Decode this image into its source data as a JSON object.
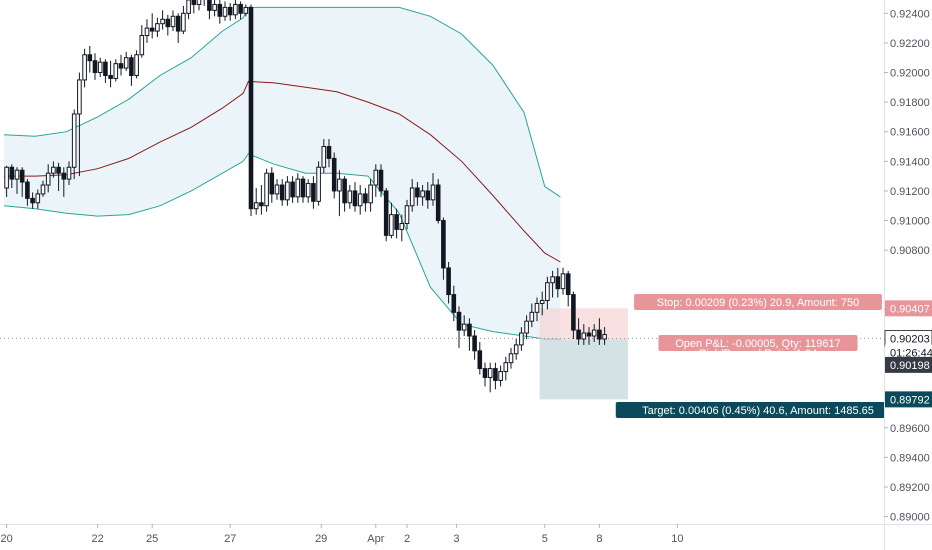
{
  "chart_data": {
    "type": "candlestick",
    "colors": {
      "candle_up": "#ffffff",
      "candle_down": "#131722",
      "wick": "#131722",
      "band_line": "#26a69a",
      "band_fill": "#e3f0f7",
      "mid_line": "#8b1a1a",
      "stop_zone": "#f7d4d4",
      "target_zone": "#c9d9df",
      "stop_label_bg": "#e8959a",
      "target_label_bg": "#0b4a5a",
      "price_tag_bg": "#363a45",
      "dotted_line": "#9598a1"
    },
    "ylim": [
      0.8895,
      0.9249
    ],
    "xlim": [
      0,
      130
    ],
    "y_ticks": [
      "0.92400",
      "0.92200",
      "0.92000",
      "0.91800",
      "0.91600",
      "0.91400",
      "0.91200",
      "0.91000",
      "0.90800",
      "0.90400",
      "0.90200",
      "0.89600",
      "0.89400",
      "0.89200",
      "0.89000"
    ],
    "x_ticks": [
      {
        "label": "20",
        "x": 0.5
      },
      {
        "label": "22",
        "x": 18
      },
      {
        "label": "25",
        "x": 28.5
      },
      {
        "label": "27",
        "x": 43.5
      },
      {
        "label": "29",
        "x": 61
      },
      {
        "label": "Apr",
        "x": 71.5
      },
      {
        "label": "2",
        "x": 77.5
      },
      {
        "label": "3",
        "x": 87
      },
      {
        "label": "5",
        "x": 104
      },
      {
        "label": "8",
        "x": 114.5
      },
      {
        "label": "10",
        "x": 129.5
      }
    ],
    "price_tags": [
      {
        "label": "0.90407",
        "value": 0.90407,
        "style": "stop"
      },
      {
        "label": "0.90203",
        "value": 0.90203,
        "style": "current"
      },
      {
        "label": "01:26:44",
        "value": 0.90107,
        "style": "timer"
      },
      {
        "label": "0.90198",
        "value": 0.90025,
        "style": "entry"
      },
      {
        "label": "0.89792",
        "value": 0.89792,
        "style": "target"
      }
    ],
    "position": {
      "entry": 0.90198,
      "stop": 0.90407,
      "target": 0.89792,
      "x_start": 103,
      "x_end": 120,
      "stop_label": "Stop: 0.00209 (0.23%) 20.9, Amount: 750",
      "open_label": "Open P&L: -0.00005, Qty: 119617",
      "ratio_label": "Risk/Reward Ratio: 1.94",
      "target_label": "Target: 0.00406 (0.45%) 40.6, Amount: 1485.65"
    },
    "bands": {
      "x": [
        0,
        6,
        12,
        18,
        24,
        30,
        36,
        42,
        46,
        47,
        52,
        58,
        64,
        70,
        76,
        82,
        88,
        94,
        100,
        104,
        107
      ],
      "upper": [
        0.9158,
        0.9157,
        0.916,
        0.917,
        0.9182,
        0.9198,
        0.921,
        0.9228,
        0.9237,
        0.9244,
        0.9244,
        0.9244,
        0.9244,
        0.9244,
        0.9244,
        0.9238,
        0.9226,
        0.9205,
        0.9173,
        0.9123,
        0.9116
      ],
      "middle": [
        0.913,
        0.913,
        0.9131,
        0.9135,
        0.9142,
        0.9153,
        0.9163,
        0.9176,
        0.9186,
        0.9194,
        0.9193,
        0.919,
        0.9187,
        0.918,
        0.9172,
        0.9158,
        0.914,
        0.9117,
        0.9093,
        0.9078,
        0.9072
      ],
      "lower": [
        0.911,
        0.9108,
        0.9105,
        0.9103,
        0.9104,
        0.911,
        0.912,
        0.9132,
        0.914,
        0.9145,
        0.9138,
        0.9132,
        0.9132,
        0.913,
        0.9105,
        0.9055,
        0.903,
        0.9025,
        0.9022,
        0.902,
        0.902
      ]
    },
    "candles": [
      [
        0.9122,
        0.9136,
        0.9137,
        0.9116
      ],
      [
        0.9136,
        0.9128,
        0.9138,
        0.9122
      ],
      [
        0.9128,
        0.9134,
        0.9136,
        0.9118
      ],
      [
        0.9134,
        0.9126,
        0.9136,
        0.9116
      ],
      [
        0.9126,
        0.9115,
        0.9128,
        0.911
      ],
      [
        0.9115,
        0.9112,
        0.9119,
        0.9108
      ],
      [
        0.9112,
        0.9118,
        0.9121,
        0.9108
      ],
      [
        0.9118,
        0.9124,
        0.9127,
        0.9116
      ],
      [
        0.9124,
        0.9132,
        0.9138,
        0.9119
      ],
      [
        0.9132,
        0.9136,
        0.914,
        0.9129
      ],
      [
        0.9136,
        0.9132,
        0.9139,
        0.912
      ],
      [
        0.9132,
        0.9128,
        0.9136,
        0.9116
      ],
      [
        0.9128,
        0.9136,
        0.914,
        0.9124
      ],
      [
        0.9136,
        0.9172,
        0.9175,
        0.9128
      ],
      [
        0.9172,
        0.9195,
        0.92,
        0.913
      ],
      [
        0.9195,
        0.9212,
        0.9216,
        0.919
      ],
      [
        0.9212,
        0.9208,
        0.9218,
        0.92
      ],
      [
        0.9208,
        0.92,
        0.9213,
        0.9195
      ],
      [
        0.92,
        0.9207,
        0.921,
        0.9197
      ],
      [
        0.9207,
        0.9198,
        0.9209,
        0.9193
      ],
      [
        0.9198,
        0.9196,
        0.9208,
        0.919
      ],
      [
        0.9196,
        0.9206,
        0.9209,
        0.9194
      ],
      [
        0.9206,
        0.9203,
        0.9212,
        0.9198
      ],
      [
        0.9203,
        0.921,
        0.9214,
        0.9201
      ],
      [
        0.921,
        0.9198,
        0.9212,
        0.9191
      ],
      [
        0.9198,
        0.9212,
        0.9215,
        0.9196
      ],
      [
        0.9212,
        0.9225,
        0.9232,
        0.921
      ],
      [
        0.9225,
        0.923,
        0.9236,
        0.922
      ],
      [
        0.923,
        0.9228,
        0.924,
        0.9223
      ],
      [
        0.9228,
        0.9233,
        0.9237,
        0.9224
      ],
      [
        0.9233,
        0.9236,
        0.9242,
        0.9229
      ],
      [
        0.9236,
        0.9231,
        0.9239,
        0.9225
      ],
      [
        0.9231,
        0.9238,
        0.9242,
        0.9228
      ],
      [
        0.9238,
        0.9228,
        0.924,
        0.922
      ],
      [
        0.9228,
        0.924,
        0.9245,
        0.9226
      ],
      [
        0.924,
        0.9249,
        0.9252,
        0.9236
      ],
      [
        0.9249,
        0.9246,
        0.9252,
        0.924
      ],
      [
        0.9246,
        0.9254,
        0.9256,
        0.9242
      ],
      [
        0.9254,
        0.925,
        0.9256,
        0.9245
      ],
      [
        0.925,
        0.9242,
        0.9254,
        0.9236
      ],
      [
        0.9242,
        0.9246,
        0.925,
        0.9238
      ],
      [
        0.9246,
        0.9238,
        0.9249,
        0.9233
      ],
      [
        0.9238,
        0.9244,
        0.9248,
        0.9235
      ],
      [
        0.9244,
        0.9239,
        0.9247,
        0.9235
      ],
      [
        0.9239,
        0.9246,
        0.9249,
        0.9236
      ],
      [
        0.9246,
        0.924,
        0.9248,
        0.9236
      ],
      [
        0.924,
        0.9244,
        0.9246,
        0.9238
      ],
      [
        0.9244,
        0.9108,
        0.9246,
        0.9103
      ],
      [
        0.9108,
        0.9112,
        0.9122,
        0.9104
      ],
      [
        0.9112,
        0.911,
        0.9124,
        0.9104
      ],
      [
        0.911,
        0.9132,
        0.9135,
        0.9106
      ],
      [
        0.9132,
        0.9118,
        0.9136,
        0.9112
      ],
      [
        0.9118,
        0.9124,
        0.9128,
        0.9114
      ],
      [
        0.9124,
        0.9114,
        0.9128,
        0.911
      ],
      [
        0.9114,
        0.9126,
        0.913,
        0.911
      ],
      [
        0.9126,
        0.9116,
        0.913,
        0.9112
      ],
      [
        0.9116,
        0.9128,
        0.9132,
        0.9112
      ],
      [
        0.9128,
        0.9116,
        0.913,
        0.9112
      ],
      [
        0.9116,
        0.9125,
        0.9128,
        0.9112
      ],
      [
        0.9125,
        0.9113,
        0.913,
        0.9108
      ],
      [
        0.9113,
        0.9136,
        0.914,
        0.911
      ],
      [
        0.9136,
        0.915,
        0.9155,
        0.9132
      ],
      [
        0.915,
        0.9142,
        0.9155,
        0.9136
      ],
      [
        0.9142,
        0.912,
        0.9146,
        0.9115
      ],
      [
        0.912,
        0.9128,
        0.9134,
        0.9103
      ],
      [
        0.9128,
        0.9112,
        0.913,
        0.9106
      ],
      [
        0.9112,
        0.912,
        0.9124,
        0.9108
      ],
      [
        0.912,
        0.911,
        0.9126,
        0.9106
      ],
      [
        0.911,
        0.9118,
        0.9124,
        0.9104
      ],
      [
        0.9118,
        0.9112,
        0.9122,
        0.9106
      ],
      [
        0.9112,
        0.9124,
        0.9128,
        0.9106
      ],
      [
        0.9124,
        0.9134,
        0.9138,
        0.9116
      ],
      [
        0.9134,
        0.912,
        0.9138,
        0.9116
      ],
      [
        0.912,
        0.909,
        0.9122,
        0.9086
      ],
      [
        0.909,
        0.9104,
        0.9112,
        0.9088
      ],
      [
        0.9104,
        0.9094,
        0.9108,
        0.9088
      ],
      [
        0.9094,
        0.9098,
        0.9104,
        0.9086
      ],
      [
        0.9098,
        0.911,
        0.9114,
        0.9094
      ],
      [
        0.911,
        0.9122,
        0.9128,
        0.9106
      ],
      [
        0.9122,
        0.9116,
        0.9126,
        0.911
      ],
      [
        0.9116,
        0.912,
        0.9124,
        0.911
      ],
      [
        0.912,
        0.9114,
        0.9126,
        0.9108
      ],
      [
        0.9114,
        0.9124,
        0.9132,
        0.911
      ],
      [
        0.9124,
        0.91,
        0.9128,
        0.9098
      ],
      [
        0.91,
        0.9068,
        0.9102,
        0.906
      ],
      [
        0.9068,
        0.905,
        0.9072,
        0.9044
      ],
      [
        0.905,
        0.9038,
        0.9056,
        0.9032
      ],
      [
        0.9038,
        0.9026,
        0.9042,
        0.9014
      ],
      [
        0.9026,
        0.903,
        0.9036,
        0.9022
      ],
      [
        0.903,
        0.9022,
        0.9034,
        0.9012
      ],
      [
        0.9022,
        0.9012,
        0.9026,
        0.9006
      ],
      [
        0.9012,
        0.9,
        0.9018,
        0.8996
      ],
      [
        0.9,
        0.8994,
        0.9004,
        0.8988
      ],
      [
        0.8994,
        0.9,
        0.9004,
        0.8984
      ],
      [
        0.9,
        0.8992,
        0.9004,
        0.8986
      ],
      [
        0.8992,
        0.8998,
        0.9002,
        0.8988
      ],
      [
        0.8998,
        0.9004,
        0.9008,
        0.8992
      ],
      [
        0.9004,
        0.901,
        0.9014,
        0.9
      ],
      [
        0.901,
        0.9016,
        0.902,
        0.9006
      ],
      [
        0.9016,
        0.9024,
        0.9028,
        0.9012
      ],
      [
        0.9024,
        0.9032,
        0.9036,
        0.902
      ],
      [
        0.9032,
        0.9038,
        0.9044,
        0.9028
      ],
      [
        0.9038,
        0.9044,
        0.9048,
        0.9032
      ],
      [
        0.9044,
        0.9046,
        0.9052,
        0.9036
      ],
      [
        0.9046,
        0.9058,
        0.9062,
        0.904
      ],
      [
        0.9058,
        0.9062,
        0.9066,
        0.9048
      ],
      [
        0.9062,
        0.9054,
        0.9068,
        0.9048
      ],
      [
        0.9054,
        0.9064,
        0.9068,
        0.905
      ],
      [
        0.9064,
        0.905,
        0.9066,
        0.9042
      ],
      [
        0.905,
        0.9026,
        0.9052,
        0.902
      ],
      [
        0.9026,
        0.902,
        0.9034,
        0.9016
      ],
      [
        0.902,
        0.9024,
        0.903,
        0.9016
      ],
      [
        0.9024,
        0.9022,
        0.9028,
        0.9016
      ],
      [
        0.9022,
        0.9026,
        0.903,
        0.9018
      ],
      [
        0.9026,
        0.902,
        0.9034,
        0.9016
      ],
      [
        0.902,
        0.9023,
        0.9028,
        0.9016
      ]
    ]
  }
}
